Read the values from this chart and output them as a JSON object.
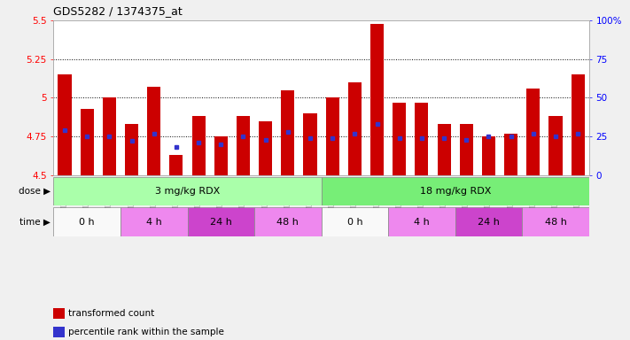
{
  "title": "GDS5282 / 1374375_at",
  "samples": [
    "GSM306951",
    "GSM306953",
    "GSM306955",
    "GSM306957",
    "GSM306959",
    "GSM306961",
    "GSM306963",
    "GSM306965",
    "GSM306967",
    "GSM306969",
    "GSM306971",
    "GSM306973",
    "GSM306975",
    "GSM306977",
    "GSM306979",
    "GSM306981",
    "GSM306983",
    "GSM306985",
    "GSM306987",
    "GSM306989",
    "GSM306991",
    "GSM306993",
    "GSM306995",
    "GSM306997"
  ],
  "bar_values": [
    5.15,
    4.93,
    5.0,
    4.83,
    5.07,
    4.63,
    4.88,
    4.75,
    4.88,
    4.85,
    5.05,
    4.9,
    5.0,
    5.1,
    5.48,
    4.97,
    4.97,
    4.83,
    4.83,
    4.75,
    4.77,
    5.06,
    4.88,
    5.15
  ],
  "blue_marker_values": [
    4.79,
    4.75,
    4.75,
    4.72,
    4.77,
    4.68,
    4.71,
    4.7,
    4.75,
    4.73,
    4.78,
    4.74,
    4.74,
    4.77,
    4.83,
    4.74,
    4.74,
    4.74,
    4.73,
    4.75,
    4.75,
    4.77,
    4.75,
    4.77
  ],
  "bar_color": "#cc0000",
  "blue_color": "#3333cc",
  "ylim_left": [
    4.5,
    5.5
  ],
  "ylim_right": [
    0,
    100
  ],
  "yticks_left": [
    4.5,
    4.75,
    5.0,
    5.25,
    5.5
  ],
  "ytick_labels_left": [
    "4.5",
    "4.75",
    "5",
    "5.25",
    "5.5"
  ],
  "yticks_right": [
    0,
    25,
    50,
    75,
    100
  ],
  "ytick_labels_right": [
    "0",
    "25",
    "50",
    "75",
    "100%"
  ],
  "hlines": [
    4.75,
    5.0,
    5.25
  ],
  "dose_groups": [
    {
      "label": "3 mg/kg RDX",
      "start": 0,
      "end": 12,
      "color": "#aaffaa"
    },
    {
      "label": "18 mg/kg RDX",
      "start": 12,
      "end": 24,
      "color": "#77ee77"
    }
  ],
  "time_groups": [
    {
      "label": "0 h",
      "start": 0,
      "end": 3,
      "color": "#f9f9f9"
    },
    {
      "label": "4 h",
      "start": 3,
      "end": 6,
      "color": "#ee88ee"
    },
    {
      "label": "24 h",
      "start": 6,
      "end": 9,
      "color": "#cc44cc"
    },
    {
      "label": "48 h",
      "start": 9,
      "end": 12,
      "color": "#ee88ee"
    },
    {
      "label": "0 h",
      "start": 12,
      "end": 15,
      "color": "#f9f9f9"
    },
    {
      "label": "4 h",
      "start": 15,
      "end": 18,
      "color": "#ee88ee"
    },
    {
      "label": "24 h",
      "start": 18,
      "end": 21,
      "color": "#cc44cc"
    },
    {
      "label": "48 h",
      "start": 21,
      "end": 24,
      "color": "#ee88ee"
    }
  ],
  "legend_items": [
    {
      "label": "transformed count",
      "color": "#cc0000"
    },
    {
      "label": "percentile rank within the sample",
      "color": "#3333cc"
    }
  ],
  "fig_bg": "#f0f0f0",
  "plot_bg": "#ffffff"
}
